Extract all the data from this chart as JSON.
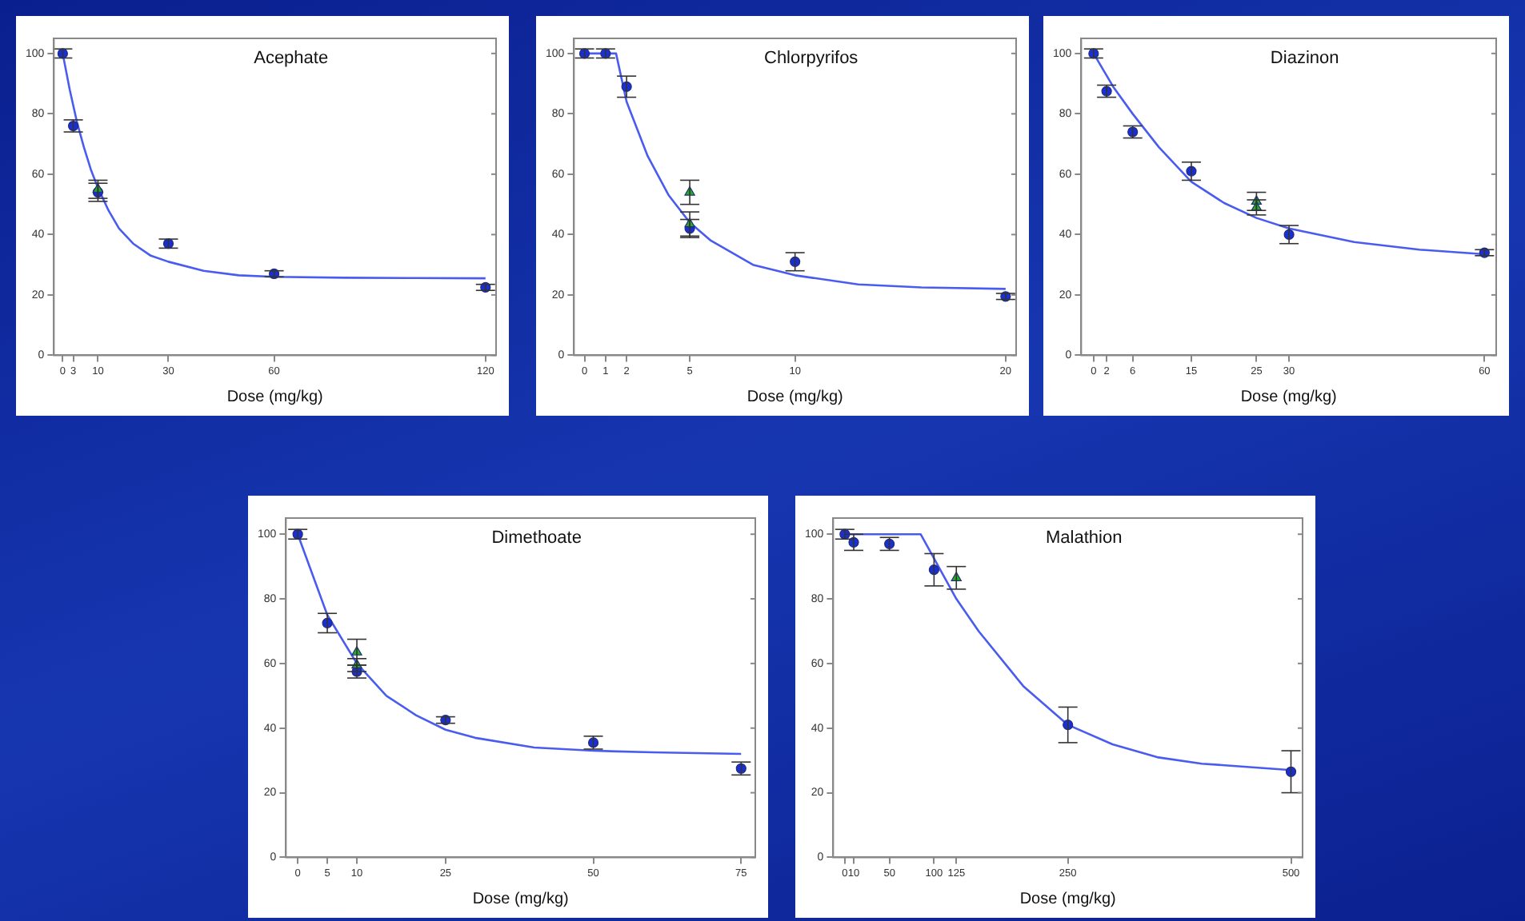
{
  "chart_data": [
    {
      "type": "scatter",
      "title": "Acephate",
      "xlabel": "Dose (mg/kg)",
      "xlim": [
        -2.5,
        123
      ],
      "xticks": [
        0,
        3,
        10,
        30,
        60,
        120
      ],
      "ylim": [
        0,
        105
      ],
      "yticks": [
        0,
        20,
        40,
        60,
        80,
        100
      ],
      "series": [
        {
          "type": "line",
          "color": "#4a5cf0",
          "marker": "none",
          "x": [
            0,
            2,
            4,
            6,
            8,
            10,
            13,
            16,
            20,
            25,
            30,
            40,
            50,
            60,
            80,
            100,
            120
          ],
          "values": [
            100,
            88,
            77.5,
            69,
            61.5,
            55.5,
            48,
            42,
            37,
            33,
            31,
            28,
            26.5,
            26,
            25.7,
            25.6,
            25.5
          ]
        },
        {
          "color": "#1a2fd0",
          "marker": "circle",
          "x": [
            0,
            3,
            10,
            30,
            60,
            120
          ],
          "values": [
            100,
            76,
            54,
            37,
            27,
            22.5
          ],
          "errors": [
            1.5,
            2,
            3,
            1.5,
            1,
            1
          ]
        },
        {
          "color": "#22b022",
          "marker": "triangle",
          "x": [
            10
          ],
          "values": [
            55
          ],
          "errors": [
            3
          ]
        }
      ]
    },
    {
      "type": "scatter",
      "title": "Chlorpyrifos",
      "xlabel": "Dose (mg/kg)",
      "xlim": [
        -0.5,
        20.5
      ],
      "xticks": [
        0,
        1,
        2,
        5,
        10,
        20
      ],
      "ylim": [
        0,
        105
      ],
      "yticks": [
        0,
        20,
        40,
        60,
        80,
        100
      ],
      "series": [
        {
          "type": "line",
          "color": "#4a5cf0",
          "marker": "none",
          "x": [
            0,
            1.5,
            2,
            2.5,
            3,
            4,
            5,
            6,
            8,
            10,
            13,
            16,
            20
          ],
          "values": [
            100,
            100,
            84,
            75,
            66,
            53,
            44,
            38,
            30,
            26.5,
            23.5,
            22.5,
            22
          ]
        },
        {
          "color": "#1a2fd0",
          "marker": "circle",
          "x": [
            0,
            1,
            2,
            5,
            10,
            20
          ],
          "values": [
            100,
            100,
            89,
            42,
            31,
            19.5
          ],
          "errors": [
            1.5,
            1.5,
            3.5,
            3,
            3,
            1
          ]
        },
        {
          "color": "#22b022",
          "marker": "triangle",
          "x": [
            5,
            5
          ],
          "values": [
            54,
            43.5
          ],
          "errors": [
            4,
            4
          ]
        }
      ]
    },
    {
      "type": "scatter",
      "title": "Diazinon",
      "xlabel": "Dose (mg/kg)",
      "xlim": [
        -1.9,
        61.8
      ],
      "xticks": [
        0,
        2,
        6,
        15,
        25,
        30,
        60
      ],
      "ylim": [
        0,
        105
      ],
      "yticks": [
        0,
        20,
        40,
        60,
        80,
        100
      ],
      "series": [
        {
          "type": "line",
          "color": "#4a5cf0",
          "marker": "none",
          "x": [
            0,
            3,
            6,
            10,
            15,
            20,
            25,
            30,
            40,
            50,
            60
          ],
          "values": [
            100,
            89,
            80,
            69,
            57.5,
            50.5,
            45.5,
            42,
            37.5,
            35,
            33.5
          ]
        },
        {
          "color": "#1a2fd0",
          "marker": "circle",
          "x": [
            0,
            2,
            6,
            15,
            30,
            60
          ],
          "values": [
            100,
            87.5,
            74,
            61,
            40,
            34
          ],
          "errors": [
            1.5,
            2,
            2,
            3,
            3,
            1
          ]
        },
        {
          "color": "#22b022",
          "marker": "triangle",
          "x": [
            25,
            25
          ],
          "values": [
            51,
            49
          ],
          "errors": [
            3,
            2.5
          ]
        }
      ]
    },
    {
      "type": "scatter",
      "title": "Dimethoate",
      "xlabel": "Dose (mg/kg)",
      "xlim": [
        -2,
        77.4
      ],
      "xticks": [
        0,
        5,
        10,
        25,
        50,
        75
      ],
      "ylim": [
        0,
        105
      ],
      "yticks": [
        0,
        20,
        40,
        60,
        80,
        100
      ],
      "series": [
        {
          "type": "line",
          "color": "#4a5cf0",
          "marker": "none",
          "x": [
            0,
            5,
            10,
            15,
            20,
            25,
            30,
            40,
            50,
            60,
            75
          ],
          "values": [
            100,
            75,
            60,
            50,
            44,
            39.5,
            37,
            34,
            33,
            32.5,
            32
          ]
        },
        {
          "color": "#1a2fd0",
          "marker": "circle",
          "x": [
            0,
            5,
            10,
            25,
            50,
            75
          ],
          "values": [
            100,
            72.5,
            57.5,
            42.5,
            35.5,
            27.5
          ],
          "errors": [
            1.5,
            3,
            2,
            1,
            2,
            2
          ]
        },
        {
          "color": "#22b022",
          "marker": "triangle",
          "x": [
            10,
            10
          ],
          "values": [
            63.5,
            59.5
          ],
          "errors": [
            4,
            2
          ]
        }
      ]
    },
    {
      "type": "scatter",
      "title": "Malathion",
      "xlabel": "Dose (mg/kg)",
      "xlim": [
        -13,
        513
      ],
      "xticks": [
        0,
        10,
        50,
        100,
        125,
        250,
        500
      ],
      "ylim": [
        0,
        105
      ],
      "yticks": [
        0,
        20,
        40,
        60,
        80,
        100
      ],
      "series": [
        {
          "type": "line",
          "color": "#4a5cf0",
          "marker": "none",
          "x": [
            0,
            85,
            125,
            150,
            200,
            250,
            300,
            350,
            400,
            500
          ],
          "values": [
            100,
            100,
            80,
            70,
            53,
            41,
            35,
            31,
            29,
            27
          ]
        },
        {
          "color": "#1a2fd0",
          "marker": "circle",
          "x": [
            0,
            10,
            50,
            100,
            250,
            500
          ],
          "values": [
            100,
            97.5,
            97,
            89,
            41,
            26.5
          ],
          "errors": [
            1.5,
            2.5,
            2,
            5,
            5.5,
            6.5
          ]
        },
        {
          "color": "#22b022",
          "marker": "triangle",
          "x": [
            125
          ],
          "values": [
            86.5
          ],
          "errors": [
            3.5
          ]
        }
      ]
    }
  ]
}
